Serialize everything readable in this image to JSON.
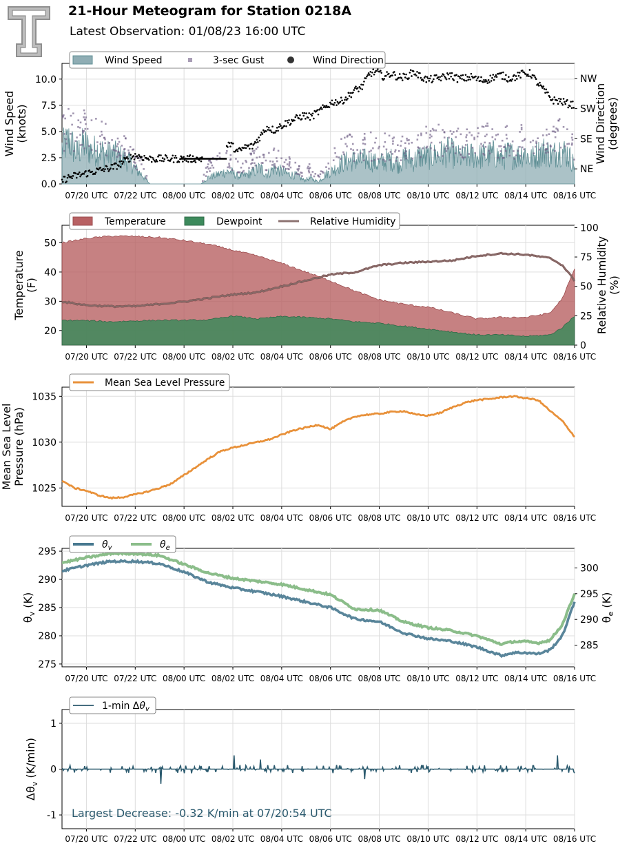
{
  "header": {
    "title": "21-Hour Meteogram for Station 0218A",
    "subtitle": "Latest Observation: 01/08/23 16:00 UTC",
    "logo": "texas-tech-double-t-logo"
  },
  "colors": {
    "wind_fill": "#8fadb4",
    "wind_edge": "#5f8f95",
    "gust": "#6f5d86",
    "direction": "#000000",
    "temperature": "#b86163",
    "dewpoint": "#3d8a5c",
    "rh": "#8c7270",
    "mslp": "#e8913a",
    "theta_v": "#47788f",
    "theta_e": "#8bbd8a",
    "dtheta": "#2b5a6e",
    "grid": "#dddddd"
  },
  "x_ticks": [
    "07/20 UTC",
    "07/22 UTC",
    "08/00 UTC",
    "08/02 UTC",
    "08/04 UTC",
    "08/06 UTC",
    "08/08 UTC",
    "08/10 UTC",
    "08/12 UTC",
    "08/14 UTC",
    "08/16 UTC"
  ],
  "chart_data": [
    {
      "type": "area",
      "id": "wind",
      "ylabel": "Wind Speed\n(knots)",
      "y2label": "Wind Direction\n(degrees)",
      "ylim": [
        0,
        11.5
      ],
      "yticks": [
        "0.0",
        "2.5",
        "5.0",
        "7.5",
        "10.0"
      ],
      "y2ticks": [
        {
          "label": "NE",
          "deg": 45
        },
        {
          "label": "SE",
          "deg": 135
        },
        {
          "label": "SW",
          "deg": 225
        },
        {
          "label": "NW",
          "deg": 315
        }
      ],
      "y2lim": [
        0,
        360
      ],
      "legend": [
        "Wind Speed",
        "3-sec Gust",
        "Wind Direction"
      ],
      "grid": true,
      "series": [
        {
          "name": "Wind Speed",
          "key": "speed",
          "x": [
            0,
            0.3,
            0.6,
            0.9,
            1.2,
            1.5,
            1.8,
            2.1,
            2.4,
            2.7,
            3.0,
            3.3,
            3.6,
            3.9,
            4.2,
            4.5,
            4.8,
            5.1,
            5.4,
            5.7,
            6.0,
            6.3,
            6.6,
            6.9,
            7.2,
            7.5,
            7.8,
            8.1,
            8.4,
            8.7,
            9.0,
            9.3,
            9.6,
            9.9,
            10.2,
            10.5,
            10.8,
            11.1,
            11.4,
            11.7,
            12.0,
            12.3,
            12.6,
            12.9,
            13.2,
            13.5,
            13.8,
            14.1,
            14.4,
            14.7,
            15.0,
            15.3,
            15.6,
            15.9,
            16.2,
            16.5,
            16.8,
            17.1,
            17.4,
            17.7,
            18.0,
            18.3,
            18.6,
            18.9,
            19.2,
            19.5,
            19.8,
            20.1,
            20.4,
            20.7,
            21.0
          ],
          "values": [
            3.8,
            4.6,
            3.2,
            4.2,
            3.5,
            3.6,
            3.1,
            3.2,
            2.8,
            2.5,
            1.6,
            0.9,
            0,
            0,
            0,
            0,
            0,
            0,
            0,
            0,
            0.7,
            0.9,
            1.2,
            1.3,
            0.8,
            0.9,
            1.2,
            1.7,
            1.0,
            1.7,
            1.3,
            1.0,
            0.9,
            0.4,
            0.6,
            0.2,
            1.0,
            1.4,
            2.1,
            2.4,
            2.5,
            2.5,
            2.6,
            2.1,
            2.4,
            2.6,
            2.1,
            2.8,
            2.4,
            3.0,
            2.8,
            3.0,
            3.2,
            3.4,
            2.8,
            2.8,
            3.0,
            2.9,
            3.0,
            3.2,
            2.6,
            3.2,
            2.8,
            3.4,
            2.6,
            3.2,
            3.5,
            3.0,
            3.6,
            3.2,
            2.0
          ]
        },
        {
          "name": "3-sec Gust",
          "key": "gust",
          "x": [
            0,
            0.3,
            0.6,
            0.9,
            1.2,
            1.5,
            1.8,
            2.1,
            2.4,
            2.7,
            3.0,
            3.3,
            3.6,
            3.9,
            4.2,
            4.5,
            4.8,
            5.1,
            5.4,
            5.7,
            6.0,
            6.3,
            6.6,
            6.9,
            7.2,
            7.5,
            7.8,
            8.1,
            8.4,
            8.7,
            9.0,
            9.3,
            9.6,
            9.9,
            10.2,
            10.5,
            10.8,
            11.1,
            11.4,
            11.7,
            12.0,
            12.3,
            12.6,
            12.9,
            13.2,
            13.5,
            13.8,
            14.1,
            14.4,
            14.7,
            15.0,
            15.3,
            15.6,
            15.9,
            16.2,
            16.5,
            16.8,
            17.1,
            17.4,
            17.7,
            18.0,
            18.3,
            18.6,
            18.9,
            19.2,
            19.5,
            19.8,
            20.1,
            20.4,
            20.7,
            21.0
          ],
          "values": [
            5.2,
            6.5,
            4.8,
            5.8,
            5.0,
            5.3,
            4.6,
            4.5,
            4.0,
            3.8,
            2.6,
            1.9,
            0,
            0,
            0,
            0,
            0,
            0,
            0,
            0,
            1.9,
            2.1,
            2.6,
            2.5,
            1.8,
            2.0,
            2.6,
            2.9,
            2.3,
            2.8,
            2.5,
            2.1,
            1.7,
            1.2,
            1.6,
            0.9,
            2.2,
            2.6,
            3.6,
            3.8,
            3.9,
            4.0,
            4.1,
            3.6,
            3.9,
            4.1,
            3.6,
            4.3,
            3.8,
            4.6,
            4.5,
            4.5,
            4.7,
            5.0,
            4.4,
            4.3,
            4.5,
            4.4,
            4.7,
            4.9,
            4.1,
            4.8,
            4.2,
            4.9,
            4.0,
            4.7,
            5.0,
            4.4,
            5.1,
            4.9,
            3.4
          ]
        },
        {
          "name": "Wind Direction",
          "key": "dir",
          "x": [
            0,
            0.3,
            0.6,
            0.9,
            1.2,
            1.5,
            1.8,
            2.1,
            2.4,
            2.7,
            3.0,
            3.3,
            3.6,
            3.9,
            4.2,
            4.5,
            4.8,
            5.1,
            5.4,
            5.7,
            6.0,
            6.3,
            6.6,
            6.9,
            7.2,
            7.5,
            7.8,
            8.1,
            8.4,
            8.7,
            9.0,
            9.3,
            9.6,
            9.9,
            10.2,
            10.5,
            10.8,
            11.1,
            11.4,
            11.7,
            12.0,
            12.3,
            12.6,
            12.9,
            13.2,
            13.5,
            13.8,
            14.1,
            14.4,
            14.7,
            15.0,
            15.3,
            15.6,
            15.9,
            16.2,
            16.5,
            16.8,
            17.1,
            17.4,
            17.7,
            18.0,
            18.3,
            18.6,
            18.9,
            19.2,
            19.5,
            19.8,
            20.1,
            20.4,
            20.7,
            21.0
          ],
          "values": [
            10,
            20,
            25,
            30,
            35,
            40,
            45,
            50,
            60,
            75,
            85,
            80,
            75,
            75,
            75,
            75,
            75,
            75,
            75,
            75,
            115,
            112,
            100,
            120,
            95,
            110,
            112,
            140,
            170,
            160,
            175,
            185,
            195,
            205,
            200,
            215,
            230,
            245,
            245,
            260,
            280,
            290,
            330,
            335,
            320,
            330,
            318,
            320,
            335,
            320,
            310,
            315,
            318,
            325,
            315,
            315,
            320,
            310,
            310,
            320,
            325,
            315,
            320,
            330,
            330,
            300,
            275,
            250,
            248,
            240,
            235
          ]
        }
      ]
    },
    {
      "type": "area",
      "id": "temp",
      "ylabel": "Temperature\n(F)",
      "y2label": "Relative Humidity\n(%)",
      "ylim": [
        15,
        56
      ],
      "y2lim": [
        0,
        102
      ],
      "yticks": [
        20,
        30,
        40,
        50
      ],
      "y2ticks": [
        0,
        25,
        50,
        75,
        100
      ],
      "legend": [
        "Temperature",
        "Dewpoint",
        "Relative Humidity"
      ],
      "grid": true,
      "series": [
        {
          "name": "Temperature",
          "key": "temp",
          "x": [
            0,
            1,
            2,
            3,
            4,
            5,
            6,
            7,
            8,
            9,
            10,
            11,
            12,
            13,
            14,
            15,
            16,
            17,
            18,
            19,
            20,
            20.5,
            21
          ],
          "values": [
            50,
            51.5,
            52.3,
            52.2,
            51.8,
            50.8,
            49.5,
            47.5,
            45.5,
            43,
            40,
            37,
            33.5,
            30.5,
            29,
            28,
            26,
            24,
            24.5,
            24.5,
            26,
            31,
            41
          ]
        },
        {
          "name": "Dewpoint",
          "key": "dew",
          "x": [
            0,
            1,
            2,
            3,
            4,
            5,
            6,
            7,
            8,
            9,
            10,
            11,
            12,
            13,
            14,
            15,
            16,
            17,
            18,
            19,
            20,
            20.5,
            21
          ],
          "values": [
            23.5,
            23.4,
            23,
            23.3,
            23.5,
            23.5,
            23.6,
            25,
            24,
            24.8,
            24.5,
            24,
            23,
            22.5,
            21.5,
            20.5,
            19.5,
            18.5,
            18.5,
            18,
            18.5,
            21,
            25
          ]
        },
        {
          "name": "Relative Humidity",
          "key": "rh",
          "x": [
            0,
            1,
            2,
            3,
            4,
            5,
            6,
            7,
            8,
            9,
            10,
            11,
            12,
            13,
            14,
            15,
            16,
            17,
            18,
            19,
            20,
            20.5,
            21
          ],
          "values": [
            37,
            34,
            33,
            33,
            35,
            37,
            40,
            43,
            45,
            50,
            55,
            60,
            62,
            68,
            70,
            71,
            72,
            76,
            78,
            77,
            74,
            68,
            55
          ]
        }
      ]
    },
    {
      "type": "line",
      "id": "mslp",
      "ylabel": "Mean Sea Level\nPressure (hPa)",
      "ylim": [
        1023,
        1036
      ],
      "yticks": [
        1025,
        1030,
        1035
      ],
      "legend": [
        "Mean Sea Level Pressure"
      ],
      "grid": true,
      "series": [
        {
          "name": "Mean Sea Level Pressure",
          "x": [
            0,
            0.5,
            1,
            1.5,
            2,
            2.5,
            3,
            3.5,
            4,
            4.5,
            5,
            5.5,
            6,
            6.5,
            7,
            7.5,
            8,
            8.5,
            9,
            9.5,
            10,
            10.5,
            11,
            11.5,
            12,
            12.5,
            13,
            13.5,
            14,
            14.5,
            15,
            15.5,
            16,
            16.5,
            17,
            17.5,
            18,
            18.5,
            19,
            19.5,
            20,
            20.5,
            21
          ],
          "values": [
            1025.8,
            1025.0,
            1024.7,
            1024.2,
            1023.9,
            1024.0,
            1024.3,
            1024.6,
            1025.0,
            1025.5,
            1026.4,
            1027.3,
            1028.2,
            1029.0,
            1029.4,
            1029.7,
            1030.0,
            1030.3,
            1030.8,
            1031.3,
            1031.6,
            1031.9,
            1031.4,
            1032.2,
            1032.8,
            1033.0,
            1033.1,
            1033.3,
            1033.4,
            1033.0,
            1032.9,
            1033.2,
            1033.8,
            1034.3,
            1034.6,
            1034.7,
            1034.9,
            1035.0,
            1034.8,
            1034.6,
            1033.4,
            1032.3,
            1030.6
          ]
        }
      ]
    },
    {
      "type": "line",
      "id": "theta",
      "ylabel": "θv (K)",
      "y2label": "θe (K)",
      "ylim": [
        274.5,
        295.5
      ],
      "y2lim": [
        280.8,
        303.8
      ],
      "yticks": [
        275,
        280,
        285,
        290,
        295
      ],
      "y2ticks": [
        285,
        290,
        295,
        300
      ],
      "legend": [
        "θv",
        "θe"
      ],
      "grid": true,
      "series": [
        {
          "name": "θv",
          "axis": "left",
          "x": [
            0,
            1,
            2,
            3,
            4,
            5,
            6,
            7,
            8,
            9,
            10,
            11,
            12,
            13,
            14,
            15,
            16,
            17,
            18,
            18.5,
            19,
            19.5,
            20,
            20.5,
            21
          ],
          "values": [
            291.5,
            292.5,
            293.2,
            293.2,
            292.8,
            291.3,
            289.5,
            288.5,
            287.8,
            287,
            286,
            285,
            283,
            282.5,
            280.5,
            279.5,
            279,
            278,
            276.5,
            277,
            277,
            276.8,
            277.5,
            280,
            286
          ]
        },
        {
          "name": "θe",
          "axis": "right",
          "x": [
            0,
            1,
            2,
            3,
            4,
            5,
            6,
            7,
            8,
            9,
            10,
            11,
            12,
            13,
            14,
            15,
            16,
            17,
            18,
            18.5,
            19,
            19.5,
            20,
            20.5,
            21
          ],
          "values": [
            301,
            302,
            302.8,
            302.8,
            302.4,
            300.7,
            299,
            298,
            297.4,
            296.8,
            295.8,
            294.8,
            292,
            291.8,
            289.5,
            288.4,
            287.8,
            286.8,
            285.2,
            285.7,
            285.7,
            285.4,
            286,
            289,
            295
          ]
        }
      ]
    },
    {
      "type": "line",
      "id": "dtheta",
      "ylabel": "Δθv (K/min)",
      "ylim": [
        -1.3,
        1.3
      ],
      "yticks": [
        -1,
        0,
        1
      ],
      "legend": [
        "1-min Δθv"
      ],
      "annotation": "Largest Decrease: -0.32 K/min at 07/20:54 UTC",
      "grid": true,
      "series": [
        {
          "name": "1-min Δθv",
          "x": [
            0,
            0.5,
            1,
            1.5,
            2,
            2.5,
            3,
            3.5,
            4,
            4.5,
            5,
            5.5,
            6,
            6.5,
            7,
            7.5,
            8,
            8.5,
            9,
            9.5,
            10,
            10.5,
            11,
            11.5,
            12,
            12.5,
            13,
            13.5,
            14,
            14.5,
            15,
            15.5,
            16,
            16.5,
            17,
            17.5,
            18,
            18.5,
            19,
            19.5,
            20,
            20.5,
            21
          ],
          "values": [
            0,
            0.05,
            -0.1,
            0.1,
            -0.32,
            0,
            0.05,
            -0.05,
            0,
            0,
            -0.05,
            0,
            -0.1,
            0.05,
            0,
            0,
            0.3,
            -0.05,
            0,
            0.1,
            0,
            -0.05,
            0,
            -0.1,
            0,
            0.05,
            -0.05,
            0,
            0,
            0.05,
            0,
            0,
            0,
            -0.05,
            0.05,
            0.1,
            0,
            0.05,
            0.2,
            0.3,
            0.1,
            0.2,
            0.05
          ]
        }
      ]
    }
  ]
}
